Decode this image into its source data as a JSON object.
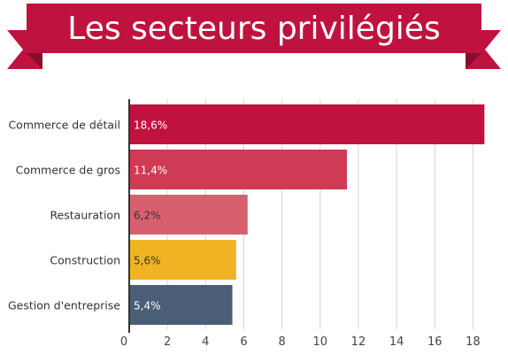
{
  "chart_data": {
    "type": "bar",
    "orientation": "horizontal",
    "title": "Les secteurs privilégiés",
    "categories": [
      "Commerce de détail",
      "Commerce de gros",
      "Restauration",
      "Construction",
      "Gestion d'entreprise"
    ],
    "values": [
      18.6,
      11.4,
      6.2,
      5.6,
      5.4
    ],
    "value_labels": [
      "18,6%",
      "11,4%",
      "6,2%",
      "5,6%",
      "5,4%"
    ],
    "colors": [
      "#c0123f",
      "#cf3a55",
      "#d8606e",
      "#f0b323",
      "#4b5e78"
    ],
    "label_colors": [
      "#ffffff",
      "#ffffff",
      "#333333",
      "#333333",
      "#ffffff"
    ],
    "xlim": [
      0,
      19
    ],
    "xticks": [
      0,
      2,
      4,
      6,
      8,
      10,
      12,
      14,
      16,
      18
    ],
    "grid": true,
    "xlabel": "",
    "ylabel": ""
  },
  "theme": {
    "banner_color": "#c0123f",
    "banner_fold_color": "#8a0c2c",
    "grid_color": "#d4d4d4",
    "axis_color": "#333333"
  }
}
